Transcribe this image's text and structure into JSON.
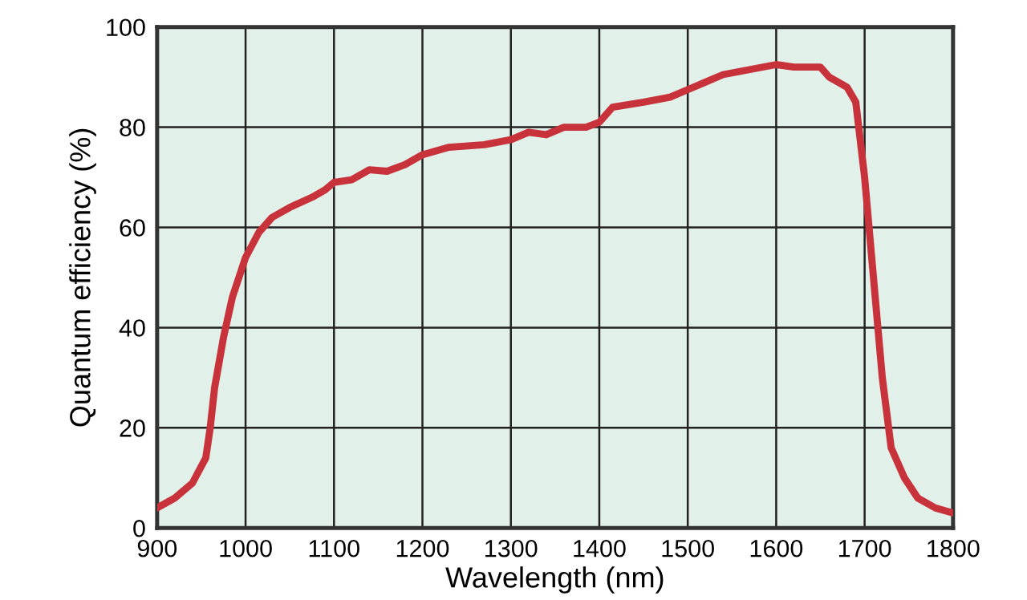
{
  "chart_data": {
    "type": "line",
    "xlabel": "Wavelength (nm)",
    "ylabel": "Quantum efficiency (%)",
    "xlim": [
      900,
      1800
    ],
    "ylim": [
      0,
      100
    ],
    "xticks": [
      900,
      1000,
      1100,
      1200,
      1300,
      1400,
      1500,
      1600,
      1700,
      1800
    ],
    "yticks": [
      0,
      20,
      40,
      60,
      80,
      100
    ],
    "grid": true,
    "series": [
      {
        "color": "#c8323a",
        "x": [
          900,
          920,
          940,
          955,
          960,
          965,
          975,
          985,
          1000,
          1015,
          1030,
          1050,
          1075,
          1090,
          1100,
          1120,
          1140,
          1160,
          1180,
          1200,
          1230,
          1270,
          1300,
          1320,
          1340,
          1360,
          1385,
          1400,
          1415,
          1450,
          1480,
          1500,
          1520,
          1540,
          1570,
          1600,
          1620,
          1650,
          1660,
          1680,
          1690,
          1700,
          1710,
          1720,
          1730,
          1745,
          1760,
          1780,
          1800
        ],
        "values": [
          4,
          6,
          9,
          14,
          20,
          28,
          38,
          46,
          54,
          59,
          62,
          64,
          66,
          67.5,
          69,
          69.5,
          71.5,
          71.2,
          72.5,
          74.5,
          76,
          76.5,
          77.5,
          79,
          78.5,
          80,
          80,
          81,
          84,
          85,
          86,
          87.5,
          89,
          90.5,
          91.5,
          92.5,
          92,
          92,
          90,
          88,
          85,
          70,
          50,
          30,
          16,
          10,
          6,
          4,
          3
        ]
      }
    ]
  }
}
